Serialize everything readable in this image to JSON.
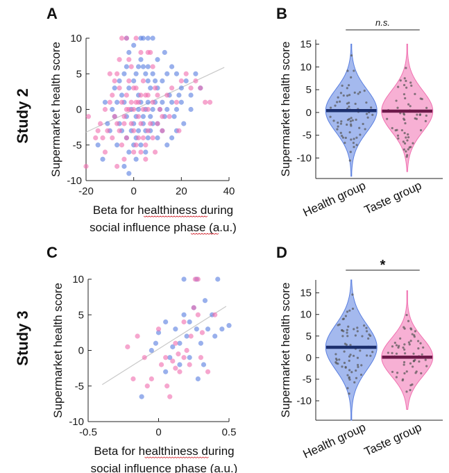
{
  "studies": [
    "Study 2",
    "Study 3"
  ],
  "colors": {
    "health": "#5a7fe0",
    "taste": "#f070b0",
    "health_dark": "#1c2f6e",
    "taste_dark": "#6e1a4a",
    "fit": "#c8c8c8"
  },
  "chart_data": [
    {
      "panel": "A",
      "type": "scatter",
      "study": "Study 2",
      "xlabel": [
        "Beta for healthiness during",
        "social influence phase (a.u.)"
      ],
      "ylabel": "Supermarket health score",
      "xlim": [
        -20,
        40
      ],
      "ylim": [
        -10,
        10
      ],
      "xticks": [
        -20,
        0,
        20,
        40
      ],
      "yticks": [
        -10,
        -5,
        0,
        5,
        10
      ],
      "fit_line": {
        "x": [
          -20,
          38
        ],
        "y": [
          -3.2,
          5.9
        ]
      },
      "series": [
        {
          "group": "health",
          "points": [
            [
              -3,
              10
            ],
            [
              4,
              10
            ],
            [
              6,
              10
            ],
            [
              8,
              10
            ],
            [
              3,
              10
            ],
            [
              -7,
              -5
            ],
            [
              -15,
              -5
            ],
            [
              -13,
              -7
            ],
            [
              -10,
              -3
            ],
            [
              -8,
              -1
            ],
            [
              -5,
              2
            ],
            [
              -4,
              5
            ],
            [
              -3,
              6
            ],
            [
              -2,
              3
            ],
            [
              0,
              4
            ],
            [
              1,
              5
            ],
            [
              2,
              6
            ],
            [
              3,
              7
            ],
            [
              4,
              6
            ],
            [
              5,
              5
            ],
            [
              6,
              4
            ],
            [
              7,
              3
            ],
            [
              8,
              5
            ],
            [
              9,
              4
            ],
            [
              10,
              3
            ],
            [
              12,
              4
            ],
            [
              14,
              5
            ],
            [
              16,
              6
            ],
            [
              18,
              5
            ],
            [
              20,
              3
            ],
            [
              22,
              4
            ],
            [
              24,
              2
            ],
            [
              26,
              5
            ],
            [
              28,
              3
            ],
            [
              -6,
              -2
            ],
            [
              -3,
              -1
            ],
            [
              -1,
              0
            ],
            [
              0,
              -2
            ],
            [
              1,
              -1
            ],
            [
              2,
              0
            ],
            [
              3,
              1
            ],
            [
              4,
              -1
            ],
            [
              5,
              0
            ],
            [
              6,
              1
            ],
            [
              7,
              -1
            ],
            [
              8,
              0
            ],
            [
              9,
              1
            ],
            [
              10,
              -2
            ],
            [
              11,
              0
            ],
            [
              12,
              1
            ],
            [
              13,
              -1
            ],
            [
              14,
              0
            ],
            [
              15,
              2
            ],
            [
              16,
              1
            ],
            [
              17,
              -1
            ],
            [
              18,
              0
            ],
            [
              19,
              2
            ],
            [
              20,
              1
            ],
            [
              -9,
              0
            ],
            [
              -7,
              1
            ],
            [
              -5,
              -3
            ],
            [
              -3,
              -4
            ],
            [
              -1,
              -3
            ],
            [
              0,
              -5
            ],
            [
              1,
              -4
            ],
            [
              2,
              -3
            ],
            [
              3,
              -5
            ],
            [
              4,
              -2
            ],
            [
              5,
              -3
            ],
            [
              6,
              -4
            ],
            [
              7,
              -3
            ],
            [
              8,
              -2
            ],
            [
              10,
              -4
            ],
            [
              12,
              -3
            ],
            [
              14,
              -5
            ],
            [
              16,
              -4
            ],
            [
              -11,
              -2
            ],
            [
              -12,
              1
            ],
            [
              -2,
              8
            ],
            [
              0,
              9
            ],
            [
              -4,
              -8
            ],
            [
              -2,
              -9
            ],
            [
              2,
              2
            ],
            [
              6,
              6
            ],
            [
              10,
              7
            ],
            [
              13,
              8
            ],
            [
              18,
              -3
            ],
            [
              21,
              -2
            ],
            [
              24,
              0
            ],
            [
              -8,
              3
            ],
            [
              -6,
              4
            ],
            [
              -4,
              1
            ],
            [
              -2,
              -6
            ],
            [
              1,
              -7
            ],
            [
              5,
              -6
            ]
          ]
        },
        {
          "group": "taste",
          "points": [
            [
              -5,
              10
            ],
            [
              -3,
              10
            ],
            [
              1,
              10
            ],
            [
              6,
              8
            ],
            [
              7,
              8
            ],
            [
              -20,
              -8
            ],
            [
              -19,
              -1
            ],
            [
              -16,
              -4
            ],
            [
              -14,
              -2
            ],
            [
              -12,
              0
            ],
            [
              -10,
              1
            ],
            [
              -9,
              2
            ],
            [
              -8,
              4
            ],
            [
              -7,
              5
            ],
            [
              -6,
              3
            ],
            [
              -5,
              1
            ],
            [
              -4,
              -1
            ],
            [
              -3,
              2
            ],
            [
              -2,
              4
            ],
            [
              -1,
              6
            ],
            [
              0,
              3
            ],
            [
              1,
              1
            ],
            [
              2,
              -1
            ],
            [
              3,
              2
            ],
            [
              4,
              4
            ],
            [
              5,
              2
            ],
            [
              6,
              0
            ],
            [
              7,
              -2
            ],
            [
              8,
              1
            ],
            [
              9,
              3
            ],
            [
              10,
              2
            ],
            [
              11,
              0
            ],
            [
              12,
              -1
            ],
            [
              14,
              2
            ],
            [
              16,
              3
            ],
            [
              18,
              1
            ],
            [
              20,
              4
            ],
            [
              22,
              5
            ],
            [
              24,
              3
            ],
            [
              26,
              4
            ],
            [
              28,
              3
            ],
            [
              30,
              1
            ],
            [
              32,
              1
            ],
            [
              -11,
              -3
            ],
            [
              -9,
              -4
            ],
            [
              -7,
              -2
            ],
            [
              -5,
              -5
            ],
            [
              -3,
              -4
            ],
            [
              -1,
              -2
            ],
            [
              0,
              -3
            ],
            [
              1,
              -5
            ],
            [
              2,
              -4
            ],
            [
              3,
              -6
            ],
            [
              4,
              -4
            ],
            [
              5,
              -5
            ],
            [
              6,
              -3
            ],
            [
              8,
              -4
            ],
            [
              10,
              -2
            ],
            [
              12,
              -3
            ],
            [
              -13,
              -4
            ],
            [
              -8,
              -1
            ],
            [
              -6,
              -3
            ],
            [
              -4,
              -2
            ],
            [
              -2,
              0
            ],
            [
              0,
              0
            ],
            [
              2,
              1
            ],
            [
              4,
              0
            ],
            [
              6,
              2
            ],
            [
              -10,
              5
            ],
            [
              -6,
              7
            ],
            [
              -2,
              7
            ],
            [
              3,
              8
            ],
            [
              8,
              6
            ],
            [
              -15,
              -3
            ],
            [
              -12,
              -6
            ],
            [
              -4,
              -7
            ],
            [
              0,
              -6
            ],
            [
              5,
              -7
            ],
            [
              -7,
              -8
            ],
            [
              9,
              -6
            ],
            [
              15,
              -1
            ],
            [
              19,
              -3
            ],
            [
              -1,
              1
            ],
            [
              1,
              3
            ],
            [
              3,
              -2
            ],
            [
              -3,
              0
            ]
          ]
        }
      ]
    },
    {
      "panel": "B",
      "type": "violin",
      "study": "Study 2",
      "ylabel": "Supermarket health score",
      "ylim": [
        -14.5,
        16
      ],
      "yticks": [
        -10,
        -5,
        0,
        5,
        10,
        15
      ],
      "categories": [
        "Health group",
        "Taste group"
      ],
      "medians": [
        0.4,
        0.3
      ],
      "ranges": [
        [
          -14,
          15
        ],
        [
          -13,
          15
        ]
      ],
      "significance": "n.s."
    },
    {
      "panel": "C",
      "type": "scatter",
      "study": "Study 3",
      "xlabel": [
        "Beta for healthiness during",
        "social influence phase (a.u.)"
      ],
      "ylabel": "Supermarket health score",
      "xlim": [
        -0.5,
        0.5
      ],
      "ylim": [
        -10,
        10
      ],
      "xticks": [
        -0.5,
        0,
        0.5
      ],
      "yticks": [
        -10,
        -5,
        0,
        5,
        10
      ],
      "fit_line": {
        "x": [
          -0.4,
          0.48
        ],
        "y": [
          -4.8,
          6.2
        ]
      },
      "series": [
        {
          "group": "health",
          "points": [
            [
              0.18,
              10
            ],
            [
              0.27,
              10
            ],
            [
              0.42,
              10
            ],
            [
              -0.12,
              -6.5
            ],
            [
              -0.05,
              0
            ],
            [
              0.0,
              2.5
            ],
            [
              0.05,
              4
            ],
            [
              0.08,
              -1
            ],
            [
              0.12,
              3
            ],
            [
              0.15,
              1
            ],
            [
              0.18,
              5
            ],
            [
              0.2,
              2
            ],
            [
              0.22,
              -1
            ],
            [
              0.25,
              6
            ],
            [
              0.27,
              3
            ],
            [
              0.3,
              1
            ],
            [
              0.32,
              -2
            ],
            [
              0.35,
              3
            ],
            [
              0.38,
              5
            ],
            [
              0.4,
              2
            ],
            [
              0.45,
              3
            ],
            [
              0.5,
              3.5
            ],
            [
              0.28,
              -4
            ],
            [
              0.15,
              -2
            ],
            [
              0.1,
              0.5
            ],
            [
              0.05,
              -3
            ],
            [
              -0.02,
              1
            ],
            [
              0.33,
              7
            ],
            [
              0.22,
              4
            ]
          ]
        },
        {
          "group": "taste",
          "points": [
            [
              0.26,
              10
            ],
            [
              0.28,
              10
            ],
            [
              -0.22,
              0.5
            ],
            [
              -0.15,
              2
            ],
            [
              -0.1,
              -1
            ],
            [
              -0.05,
              -4
            ],
            [
              0,
              3
            ],
            [
              0.02,
              -2
            ],
            [
              0.05,
              -1
            ],
            [
              0.08,
              -6.5
            ],
            [
              0.1,
              -1.5
            ],
            [
              0.12,
              1
            ],
            [
              0.15,
              -3
            ],
            [
              0.18,
              4
            ],
            [
              0.2,
              0
            ],
            [
              0.23,
              2
            ],
            [
              0.25,
              6
            ],
            [
              0.28,
              5
            ],
            [
              0.3,
              -1
            ],
            [
              0.35,
              -3
            ],
            [
              0.4,
              5
            ],
            [
              -0.18,
              -4
            ],
            [
              -0.08,
              -5
            ],
            [
              0.14,
              -0.5
            ],
            [
              0.06,
              -5
            ],
            [
              0.22,
              -2
            ],
            [
              0.31,
              2.5
            ],
            [
              0.18,
              -1
            ],
            [
              0.12,
              -2.5
            ]
          ]
        }
      ]
    },
    {
      "panel": "D",
      "type": "violin",
      "study": "Study 3",
      "ylabel": "Supermarket health score",
      "ylim": [
        -14.5,
        18
      ],
      "yticks": [
        -10,
        -5,
        0,
        5,
        10,
        15
      ],
      "categories": [
        "Health group",
        "Taste group"
      ],
      "medians": [
        2.4,
        0.1
      ],
      "ranges": [
        [
          -14.5,
          18
        ],
        [
          -12,
          15.5
        ]
      ],
      "significance": "*"
    }
  ]
}
